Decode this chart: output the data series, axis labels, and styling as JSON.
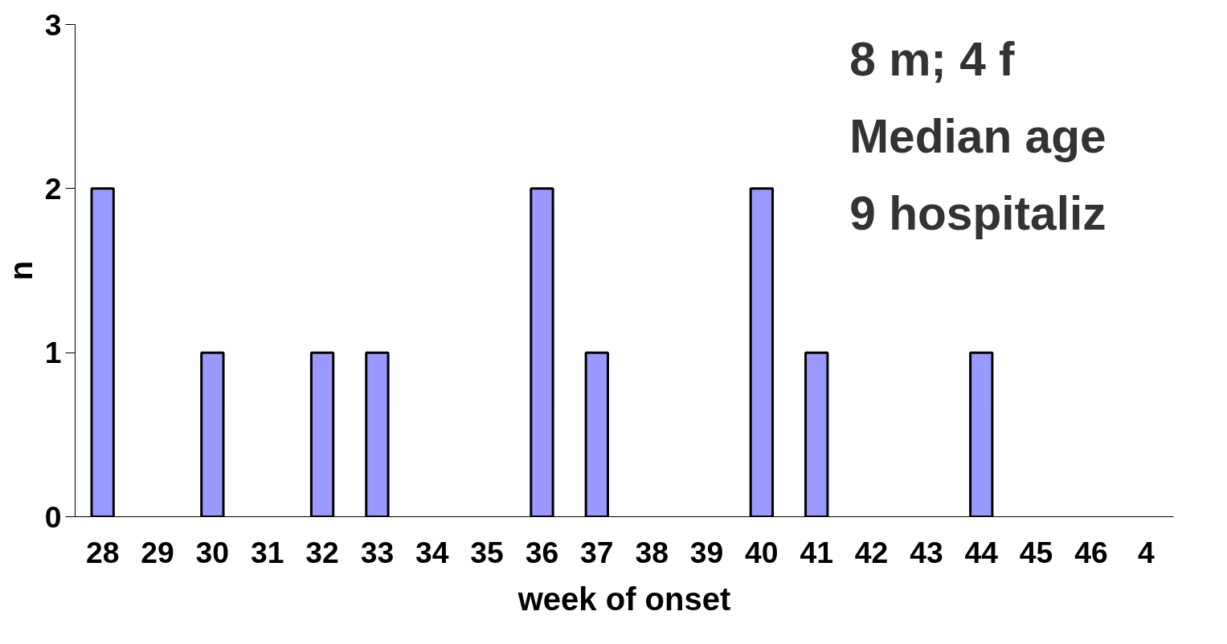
{
  "chart_data": {
    "type": "bar",
    "xlabel": "week of onset",
    "ylabel": "n",
    "categories": [
      "28",
      "29",
      "30",
      "31",
      "32",
      "33",
      "34",
      "35",
      "36",
      "37",
      "38",
      "39",
      "40",
      "41",
      "42",
      "43",
      "44",
      "45",
      "46",
      "4"
    ],
    "values": [
      2,
      0,
      1,
      0,
      1,
      1,
      0,
      0,
      2,
      1,
      0,
      0,
      2,
      1,
      0,
      0,
      1,
      0,
      0,
      null
    ],
    "color": "#9999ff",
    "ylim": [
      0,
      3
    ],
    "yticks": [
      0,
      1,
      2,
      3
    ],
    "grid": false,
    "annotations": [
      "8 m; 4 f",
      "Median age",
      "9 hospitaliz"
    ]
  }
}
